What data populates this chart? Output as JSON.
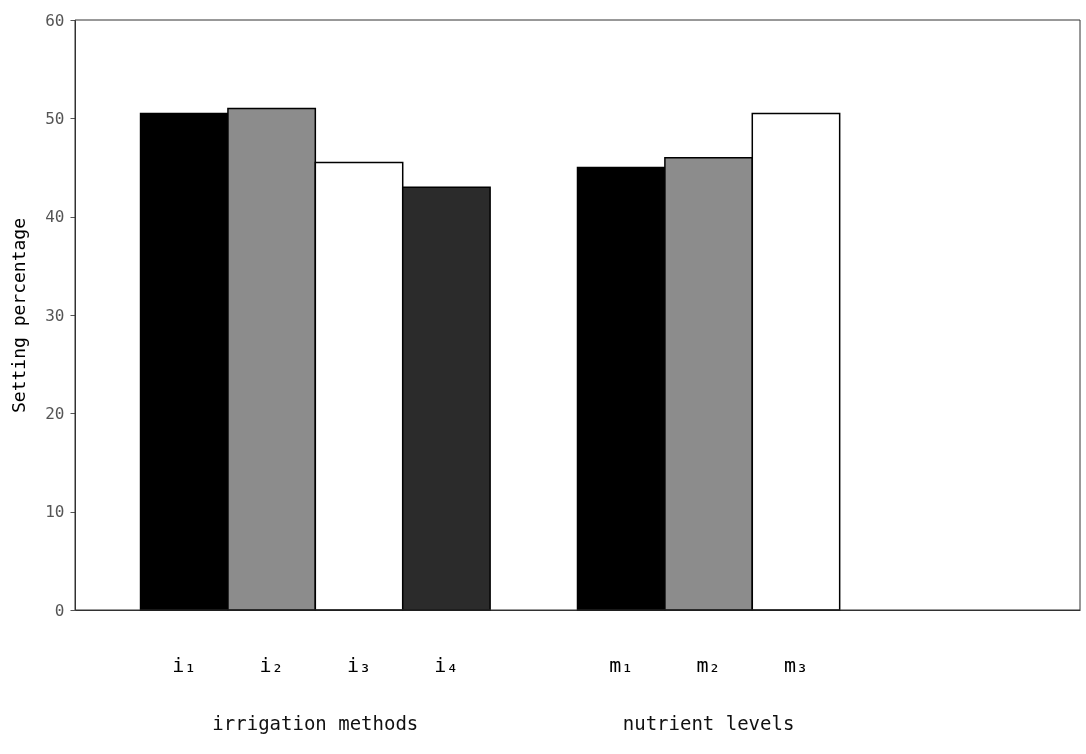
{
  "chart_data": {
    "type": "bar",
    "ylabel": "Setting percentage",
    "categories": [
      "i₁",
      "i₂",
      "i₃",
      "i₄",
      null,
      "m₁",
      "m₂",
      "m₃",
      null,
      null
    ],
    "values": [
      50.5,
      51,
      45.5,
      43,
      null,
      45,
      46,
      50.5,
      null,
      null
    ],
    "colors": [
      "#000000",
      "#8c8c8c",
      "#ffffff",
      "#2b2b2b",
      null,
      "#000000",
      "#8c8c8c",
      "#ffffff",
      null,
      null
    ],
    "ylim": [
      0,
      60
    ],
    "yticks": [
      0,
      10,
      20,
      30,
      40,
      50,
      60
    ],
    "grid": false,
    "annotations": [
      "irrigation methods",
      "nutrient levels"
    ]
  }
}
